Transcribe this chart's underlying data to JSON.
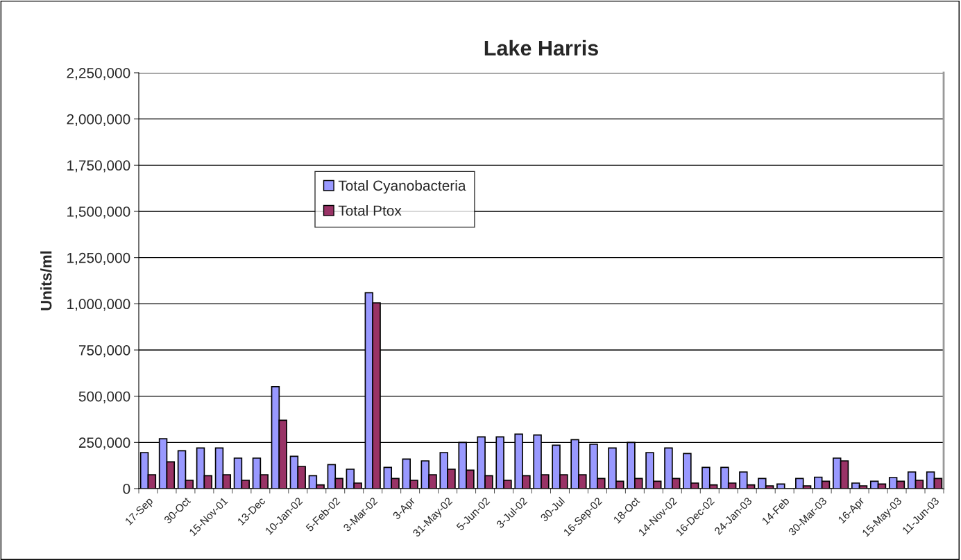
{
  "chart_data": {
    "type": "bar",
    "title": "Lake Harris",
    "ylabel": "Units/ml",
    "categories": [
      "17-Sep",
      null,
      "30-Oct",
      null,
      "15-Nov-01",
      null,
      "13-Dec",
      null,
      "10-Jan-02",
      null,
      "5-Feb-02",
      null,
      "3-Mar-02",
      null,
      "3-Apr",
      null,
      "31-May-02",
      null,
      "5-Jun-02",
      null,
      "3-Jul-02",
      null,
      "30-Jul",
      null,
      "16-Sep-02",
      null,
      "18-Oct",
      null,
      "14-Nov-02",
      null,
      "16-Dec-02",
      null,
      "24-Jan-03",
      null,
      "14-Feb",
      null,
      "30-Mar-03",
      null,
      "16-Apr",
      null,
      "15-May-03",
      null,
      "11-Jun-03"
    ],
    "series": [
      {
        "name": "Total Cyanobacteria",
        "color": "#9999ff",
        "values": [
          195000,
          270000,
          205000,
          220000,
          220000,
          165000,
          165000,
          552000,
          175000,
          70000,
          130000,
          105000,
          1060000,
          115000,
          160000,
          150000,
          195000,
          250000,
          280000,
          280000,
          295000,
          290000,
          235000,
          265000,
          240000,
          220000,
          250000,
          195000,
          220000,
          190000,
          115000,
          115000,
          90000,
          55000,
          25000,
          55000,
          62000,
          165000,
          30000,
          40000,
          60000,
          90000,
          90000
        ]
      },
      {
        "name": "Total Ptox",
        "color": "#993366",
        "values": [
          75000,
          145000,
          45000,
          70000,
          75000,
          45000,
          75000,
          370000,
          120000,
          20000,
          55000,
          30000,
          1005000,
          55000,
          45000,
          75000,
          105000,
          100000,
          70000,
          45000,
          70000,
          75000,
          75000,
          75000,
          55000,
          40000,
          55000,
          40000,
          55000,
          30000,
          20000,
          30000,
          20000,
          15000,
          null,
          15000,
          40000,
          150000,
          15000,
          25000,
          40000,
          45000,
          55000
        ]
      }
    ],
    "ylim": [
      0,
      2250000
    ],
    "yticks": [
      {
        "value": 0,
        "label": "0"
      },
      {
        "value": 250000,
        "label": "250,000"
      },
      {
        "value": 500000,
        "label": "500,000"
      },
      {
        "value": 750000,
        "label": "750,000"
      },
      {
        "value": 1000000,
        "label": "1,000,000"
      },
      {
        "value": 1250000,
        "label": "1,250,000"
      },
      {
        "value": 1500000,
        "label": "1,500,000"
      },
      {
        "value": 1750000,
        "label": "1,750,000"
      },
      {
        "value": 2000000,
        "label": "2,000,000"
      },
      {
        "value": 2250000,
        "label": "2,250,000"
      }
    ],
    "grid": "y",
    "legend": "top left"
  }
}
